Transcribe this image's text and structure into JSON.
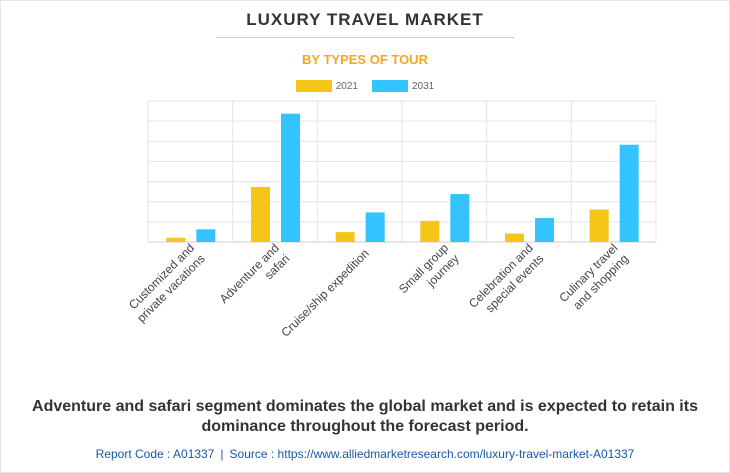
{
  "colors": {
    "series_2021": "#f5c518",
    "series_2031": "#33c3ff",
    "grid": "#e3e3e3",
    "axis": "#cccccc"
  },
  "chart_data": {
    "type": "bar",
    "title": "LUXURY TRAVEL MARKET",
    "subtitle": "BY TYPES OF TOUR",
    "categories": [
      "Customized and\nprivate vacations",
      "Adventure and\nsafari",
      "Cruise/ship expedition",
      "Small group\njourney",
      "Celebration and\nspecial events",
      "Culinary travel\nand shopping"
    ],
    "series": [
      {
        "name": "2021",
        "values": [
          3,
          39,
          7,
          15,
          6,
          23
        ]
      },
      {
        "name": "2031",
        "values": [
          9,
          91,
          21,
          34,
          17,
          69
        ]
      }
    ],
    "ylim": [
      0,
      100
    ],
    "grid": true,
    "legend": "top-center"
  },
  "caption": "Adventure and safari segment dominates the global market and is expected to retain its dominance throughout the forecast period.",
  "footer": {
    "report_code": "Report Code : A01337",
    "separator": "|",
    "source": "Source : https://www.alliedmarketresearch.com/luxury-travel-market-A01337"
  }
}
